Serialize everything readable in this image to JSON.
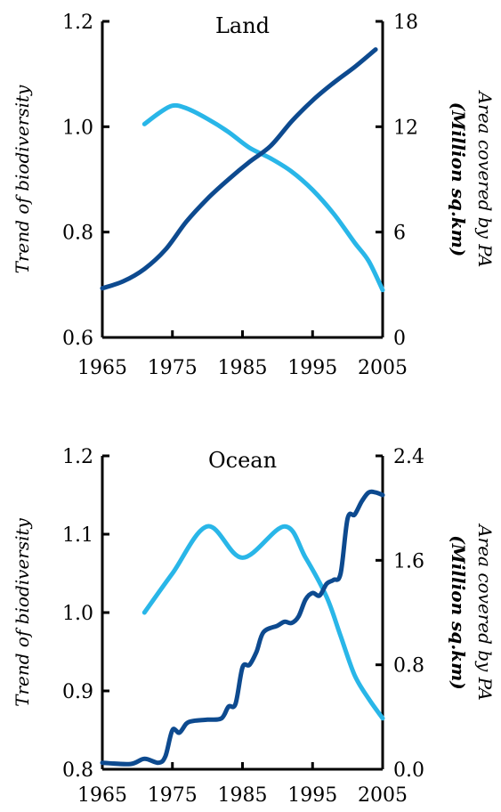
{
  "chart_data": [
    {
      "type": "line",
      "title": "Land",
      "ylabel": "Trend of biodiversity",
      "ylabel_right": [
        "Area covered by PA",
        "(Million sq.km)"
      ],
      "xlim": [
        1965,
        2005
      ],
      "ylim": [
        0.6,
        1.2
      ],
      "ylim_right": [
        0,
        18
      ],
      "x_ticks": [
        "1965",
        "1975",
        "1985",
        "1995",
        "2005"
      ],
      "y_ticks": [
        "0.6",
        "0.8",
        "1.0",
        "1.2"
      ],
      "y_ticks_right": [
        "0",
        "6",
        "12",
        "18"
      ],
      "grid": false,
      "series": [
        {
          "axis": "left",
          "color": "#29b6e8",
          "points": [
            [
              1971,
              1.005
            ],
            [
              1973,
              1.025
            ],
            [
              1975,
              1.04
            ],
            [
              1977,
              1.035
            ],
            [
              1980,
              1.015
            ],
            [
              1983,
              0.99
            ],
            [
              1986,
              0.96
            ],
            [
              1989,
              0.94
            ],
            [
              1992,
              0.915
            ],
            [
              1995,
              0.88
            ],
            [
              1998,
              0.835
            ],
            [
              2001,
              0.78
            ],
            [
              2003,
              0.745
            ],
            [
              2005,
              0.69
            ]
          ]
        },
        {
          "axis": "right",
          "color": "#0d4a8f",
          "points": [
            [
              1965,
              2.8
            ],
            [
              1968,
              3.2
            ],
            [
              1971,
              3.9
            ],
            [
              1974,
              5.0
            ],
            [
              1977,
              6.6
            ],
            [
              1980,
              7.9
            ],
            [
              1983,
              9.0
            ],
            [
              1986,
              10.0
            ],
            [
              1989,
              10.9
            ],
            [
              1992,
              12.3
            ],
            [
              1995,
              13.5
            ],
            [
              1998,
              14.5
            ],
            [
              2001,
              15.4
            ],
            [
              2004,
              16.4
            ]
          ]
        }
      ]
    },
    {
      "type": "line",
      "title": "Ocean",
      "ylabel": "Trend of biodiversity",
      "ylabel_right": [
        "Area covered by PA",
        "(Million sq.km)"
      ],
      "xlim": [
        1965,
        2005
      ],
      "ylim": [
        0.8,
        1.2
      ],
      "ylim_right": [
        0.0,
        2.4
      ],
      "x_ticks": [
        "1965",
        "1975",
        "1985",
        "1995",
        "2005"
      ],
      "y_ticks": [
        "0.8",
        "0.9",
        "1.0",
        "1.1",
        "1.2"
      ],
      "y_ticks_right": [
        "0.0",
        "0.8",
        "1.6",
        "2.4"
      ],
      "grid": false,
      "series": [
        {
          "axis": "left",
          "color": "#29b6e8",
          "points": [
            [
              1971,
              1.0
            ],
            [
              1975,
              1.05
            ],
            [
              1980,
              1.11
            ],
            [
              1985,
              1.07
            ],
            [
              1991,
              1.11
            ],
            [
              1994,
              1.07
            ],
            [
              1997,
              1.02
            ],
            [
              1999,
              0.97
            ],
            [
              2001,
              0.92
            ],
            [
              2003,
              0.89
            ],
            [
              2005,
              0.865
            ]
          ]
        },
        {
          "axis": "right",
          "color": "#0d4a8f",
          "points": [
            [
              1965,
              0.05
            ],
            [
              1969,
              0.04
            ],
            [
              1971,
              0.08
            ],
            [
              1973,
              0.05
            ],
            [
              1974,
              0.1
            ],
            [
              1975,
              0.3
            ],
            [
              1976,
              0.28
            ],
            [
              1977,
              0.35
            ],
            [
              1978,
              0.37
            ],
            [
              1980,
              0.38
            ],
            [
              1982,
              0.39
            ],
            [
              1983,
              0.48
            ],
            [
              1984,
              0.5
            ],
            [
              1985,
              0.78
            ],
            [
              1986,
              0.8
            ],
            [
              1987,
              0.9
            ],
            [
              1988,
              1.05
            ],
            [
              1990,
              1.1
            ],
            [
              1991,
              1.13
            ],
            [
              1992,
              1.12
            ],
            [
              1993,
              1.17
            ],
            [
              1994,
              1.3
            ],
            [
              1995,
              1.35
            ],
            [
              1996,
              1.33
            ],
            [
              1997,
              1.42
            ],
            [
              1998,
              1.45
            ],
            [
              1999,
              1.5
            ],
            [
              2000,
              1.92
            ],
            [
              2001,
              1.95
            ],
            [
              2002,
              2.05
            ],
            [
              2003,
              2.12
            ],
            [
              2004,
              2.12
            ],
            [
              2005,
              2.1
            ]
          ]
        }
      ]
    }
  ]
}
